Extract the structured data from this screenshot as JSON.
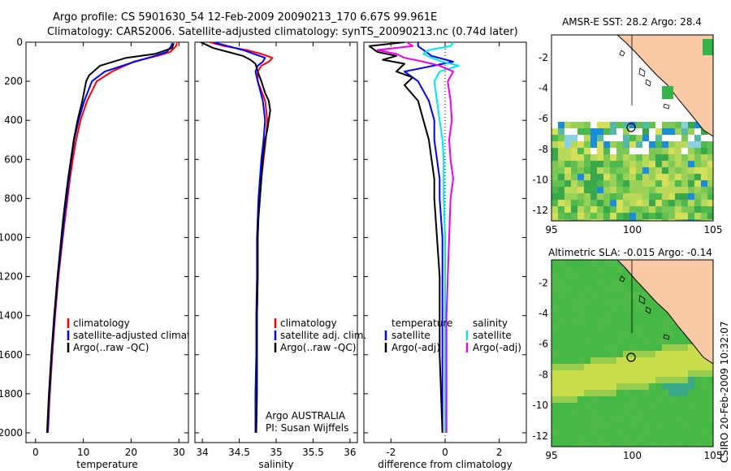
{
  "header": {
    "line1": "Argo profile: CS 5901630_54 12-Feb-2009 20090213_170 6.67S 99.961E",
    "line2": "Climatology: CARS2006. Satellite-adjusted climatology: synTS_20090213.nc (0.74d later)"
  },
  "side_label": "CSIRO 20-Feb-2009 10:32:07",
  "colors": {
    "climatology": "#ff0000",
    "satellite": "#0000ff",
    "argo": "#000000",
    "satellite_salinity_diff": "#00e5ee",
    "argo_salinity_diff": "#ee00ee",
    "land": "#f9c8a5",
    "sea_green": "#36b34a"
  },
  "chart_data": [
    {
      "type": "line",
      "name": "temperature",
      "xlabel": "temperature",
      "xlim": [
        -2,
        32
      ],
      "ylim": [
        0,
        2050
      ],
      "y_inverted": true,
      "xticks": [
        0,
        10,
        20,
        30
      ],
      "xtick_labels": [
        "0",
        "10",
        "20",
        "30"
      ],
      "yticks": [
        0,
        200,
        400,
        600,
        800,
        1000,
        1200,
        1400,
        1600,
        1800,
        2000
      ],
      "ytick_labels": [
        "0",
        "200",
        "400",
        "600",
        "800",
        "1000",
        "1200",
        "1400",
        "1600",
        "1800",
        "2000"
      ],
      "legend": [
        "climatology",
        "satellite-adjusted climatology",
        "Argo(..raw -QC)"
      ],
      "series": [
        {
          "name": "climatology",
          "color": "#ff0000",
          "depth": [
            5,
            20,
            50,
            70,
            100,
            150,
            200,
            300,
            400,
            500,
            600,
            700,
            800,
            900,
            1000,
            1200,
            1400,
            1600,
            1800,
            2000
          ],
          "values": [
            29.6,
            29.4,
            28.2,
            25.5,
            20.5,
            16,
            12.8,
            10.8,
            9.4,
            8.5,
            7.8,
            7.2,
            6.7,
            6.2,
            5.7,
            4.8,
            4.1,
            3.5,
            3,
            2.6
          ]
        },
        {
          "name": "satellite-adjusted climatology",
          "color": "#0000ff",
          "depth": [
            5,
            20,
            50,
            70,
            100,
            150,
            200,
            300,
            400,
            500,
            600,
            700,
            800,
            900,
            1000,
            1200,
            1400,
            1600,
            1800,
            2000
          ],
          "values": [
            28.6,
            28.4,
            27.5,
            25,
            20.8,
            14.5,
            11.8,
            10.2,
            9,
            8.1,
            7.5,
            7,
            6.5,
            6,
            5.6,
            4.7,
            4,
            3.4,
            2.9,
            2.5
          ]
        },
        {
          "name": "Argo(..raw -QC)",
          "color": "#000000",
          "depth": [
            5,
            30,
            60,
            80,
            120,
            170,
            200,
            300,
            400,
            500,
            600,
            700,
            800,
            900,
            1000,
            1200,
            1400,
            1600,
            1800,
            2000
          ],
          "values": [
            28.9,
            28.6,
            25,
            19,
            13.5,
            11.2,
            10.6,
            9.8,
            8.8,
            8,
            7.4,
            6.8,
            6.3,
            5.8,
            5.4,
            4.6,
            3.9,
            3.3,
            2.8,
            2.4
          ]
        }
      ]
    },
    {
      "type": "line",
      "name": "salinity",
      "xlabel": "salinity",
      "xlim": [
        33.9,
        36.1
      ],
      "ylim": [
        0,
        2050
      ],
      "y_inverted": true,
      "xticks": [
        34,
        34.5,
        35,
        35.5,
        36
      ],
      "xtick_labels": [
        "34",
        "34.5",
        "35",
        "35.5",
        "36"
      ],
      "legend": [
        "climatology",
        "satellite adj. clim.",
        "Argo(..raw -QC)"
      ],
      "annotation": [
        "Argo AUSTRALIA",
        "PI: Susan Wijffels"
      ],
      "series": [
        {
          "name": "climatology",
          "color": "#ff0000",
          "depth": [
            0,
            20,
            40,
            60,
            80,
            100,
            120,
            150,
            200,
            300,
            400,
            500,
            600,
            700,
            800,
            900,
            1000,
            1200,
            1400,
            1600,
            1800,
            2000
          ],
          "values": [
            34.1,
            34.3,
            34.6,
            34.8,
            34.95,
            34.9,
            34.8,
            34.75,
            34.75,
            34.85,
            34.88,
            34.86,
            34.83,
            34.8,
            34.78,
            34.76,
            34.75,
            34.75,
            34.74,
            34.74,
            34.73,
            34.73
          ]
        },
        {
          "name": "satellite adj. clim.",
          "color": "#0000ff",
          "depth": [
            0,
            20,
            40,
            60,
            80,
            100,
            120,
            150,
            200,
            300,
            400,
            500,
            600,
            700,
            800,
            900,
            1000,
            1200,
            1400,
            1600,
            1800,
            2000
          ],
          "values": [
            34.15,
            34.35,
            34.55,
            34.7,
            34.85,
            34.82,
            34.75,
            34.72,
            34.75,
            34.82,
            34.85,
            34.83,
            34.8,
            34.78,
            34.76,
            34.75,
            34.74,
            34.74,
            34.73,
            34.73,
            34.72,
            34.72
          ]
        },
        {
          "name": "Argo(..raw -QC)",
          "color": "#000000",
          "depth": [
            0,
            30,
            50,
            70,
            90,
            110,
            150,
            200,
            260,
            300,
            350,
            400,
            450,
            500,
            600,
            700,
            800,
            900,
            1000,
            1200,
            1400,
            1600,
            1800,
            2000
          ],
          "values": [
            33.98,
            34.15,
            34.35,
            34.55,
            34.65,
            34.72,
            34.75,
            34.8,
            34.85,
            34.9,
            34.92,
            34.9,
            34.88,
            34.85,
            34.82,
            34.8,
            34.78,
            34.76,
            34.75,
            34.75,
            34.74,
            34.74,
            34.74,
            34.73
          ]
        }
      ]
    },
    {
      "type": "line",
      "name": "difference",
      "xlabel": "difference from climatology",
      "xlim": [
        -3,
        3
      ],
      "ylim": [
        0,
        2050
      ],
      "y_inverted": true,
      "xticks": [
        -2,
        0,
        2
      ],
      "xtick_labels": [
        "-2",
        "0",
        "2"
      ],
      "zero_line": 0,
      "legend_left_title": "temperature",
      "legend_left": [
        "satellite",
        "Argo(-adj)"
      ],
      "legend_right_title": "salinity",
      "legend_right": [
        "satellite",
        "Argo(-adj)"
      ],
      "series": [
        {
          "name": "temperature satellite",
          "color": "#0000ff",
          "depth": [
            0,
            20,
            50,
            70,
            100,
            150,
            200,
            300,
            400,
            500,
            600,
            700,
            800,
            1000,
            1200,
            1400,
            1600,
            1800,
            2000
          ],
          "values": [
            -1,
            -1,
            -0.7,
            -0.5,
            0.3,
            -1.5,
            -1,
            -0.6,
            -0.4,
            -0.4,
            -0.3,
            -0.2,
            -0.2,
            -0.1,
            -0.1,
            -0.1,
            -0.1,
            -0.1,
            -0.1
          ]
        },
        {
          "name": "temperature Argo(-adj)",
          "color": "#000000",
          "depth": [
            0,
            20,
            50,
            70,
            90,
            110,
            150,
            180,
            220,
            300,
            400,
            500,
            600,
            700,
            800,
            1000,
            1200,
            1400,
            1600,
            1800,
            2000
          ],
          "values": [
            -1.5,
            -2.8,
            -2.5,
            -1.8,
            -2.3,
            -1.5,
            -1.8,
            -1.2,
            -1.5,
            -1,
            -0.8,
            -0.6,
            -0.5,
            -0.4,
            -0.4,
            -0.3,
            -0.2,
            -0.2,
            -0.2,
            -0.15,
            -0.1
          ]
        },
        {
          "name": "salinity satellite",
          "color": "#00e5ee",
          "depth": [
            0,
            20,
            40,
            60,
            80,
            100,
            120,
            150,
            200,
            300,
            400,
            500,
            600,
            800,
            1000,
            1200,
            1400,
            1600,
            1800,
            2000
          ],
          "values": [
            0.3,
            0.2,
            -0.6,
            -0.8,
            -0.5,
            -0.1,
            0.5,
            -0.2,
            -0.4,
            -0.3,
            -0.2,
            -0.1,
            -0.05,
            -0.05,
            0,
            0,
            0,
            0,
            0,
            0
          ]
        },
        {
          "name": "salinity Argo(-adj)",
          "color": "#ee00ee",
          "depth": [
            0,
            20,
            40,
            60,
            80,
            100,
            120,
            150,
            200,
            300,
            400,
            500,
            600,
            700,
            800,
            1000,
            1200,
            1400,
            1600,
            1800,
            2000
          ],
          "values": [
            -1.4,
            -1.2,
            -2.5,
            -1.8,
            -1.5,
            -0.8,
            -0.2,
            0.3,
            0.1,
            0.2,
            0.25,
            0.15,
            0.2,
            0.3,
            0.2,
            0.15,
            0.1,
            0.05,
            0.05,
            0.05,
            0.05
          ]
        }
      ]
    },
    {
      "type": "heatmap",
      "name": "sst_map",
      "title": "AMSR-E SST: 28.2 Argo: 28.4",
      "xlim": [
        95,
        105
      ],
      "ylim": [
        -12.7,
        -0.5
      ],
      "xticks": [
        95,
        100,
        105
      ],
      "yticks": [
        -2,
        -4,
        -6,
        -8,
        -10,
        -12
      ],
      "argo_position": {
        "lon": 99.961,
        "lat": -6.67
      }
    },
    {
      "type": "heatmap",
      "name": "sla_map",
      "title": "Altimetric SLA: -0.015 Argo: -0.14",
      "xlim": [
        95,
        105
      ],
      "ylim": [
        -12.7,
        -0.5
      ],
      "xticks": [
        95,
        100,
        105
      ],
      "yticks": [
        -2,
        -4,
        -6,
        -8,
        -10,
        -12
      ],
      "argo_position": {
        "lon": 99.961,
        "lat": -6.67
      }
    }
  ]
}
